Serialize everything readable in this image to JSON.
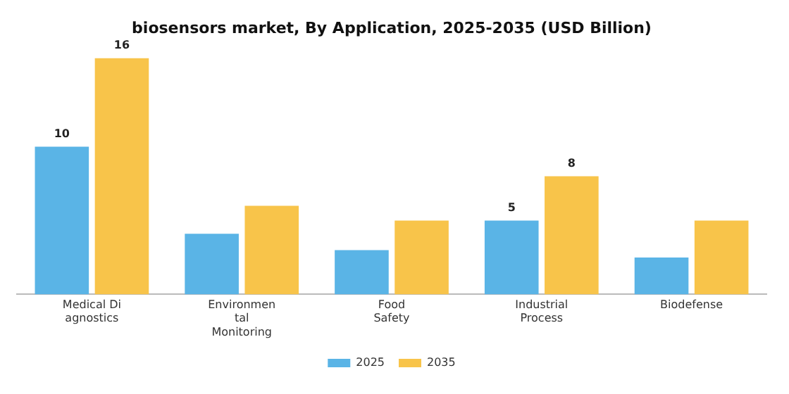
{
  "chart_data": {
    "type": "bar",
    "title": "biosensors market, By Application, 2025-2035 (USD Billion)",
    "categories": [
      "Medical Di\nagnostics",
      "Environmen\ntal\nMonitoring",
      "Food\nSafety",
      "Industrial\nProcess",
      "Biodefense"
    ],
    "series": [
      {
        "name": "2025",
        "color": "#5ab4e6",
        "values": [
          10,
          4.1,
          3,
          5,
          2.5
        ],
        "value_labels": [
          "10",
          null,
          null,
          "5",
          null
        ]
      },
      {
        "name": "2035",
        "color": "#f8c44a",
        "values": [
          16,
          6,
          5,
          8,
          5
        ],
        "value_labels": [
          "16",
          null,
          null,
          "8",
          null
        ]
      }
    ],
    "legend": "bottom",
    "grid": false,
    "tick_labels": "x"
  }
}
